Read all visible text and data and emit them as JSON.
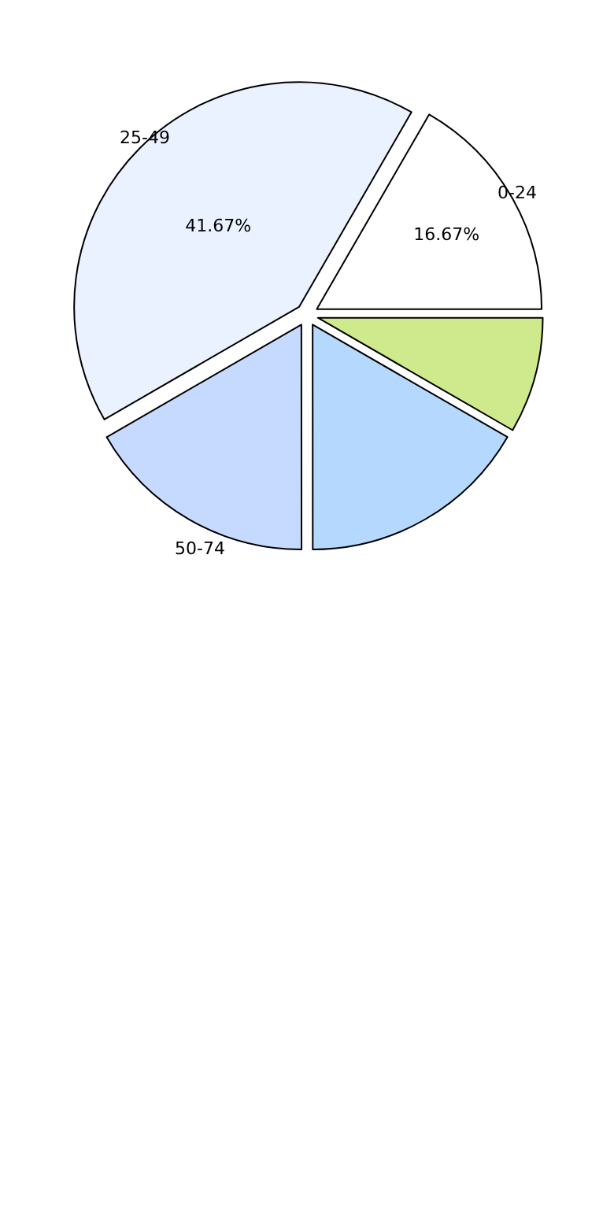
{
  "chart_data": {
    "type": "pie",
    "categories": [
      "0-24",
      "25-49",
      "50-74",
      null,
      null
    ],
    "values": [
      16.67,
      41.67,
      16.67,
      16.66,
      8.33
    ],
    "colors": [
      "#ffffff",
      "#eaf2ff",
      "#c6d9ff",
      "#b5d8ff",
      "#cfea8c"
    ],
    "value_labels": [
      "16.67%",
      "41.67%",
      null,
      null,
      null
    ],
    "legend": false
  }
}
